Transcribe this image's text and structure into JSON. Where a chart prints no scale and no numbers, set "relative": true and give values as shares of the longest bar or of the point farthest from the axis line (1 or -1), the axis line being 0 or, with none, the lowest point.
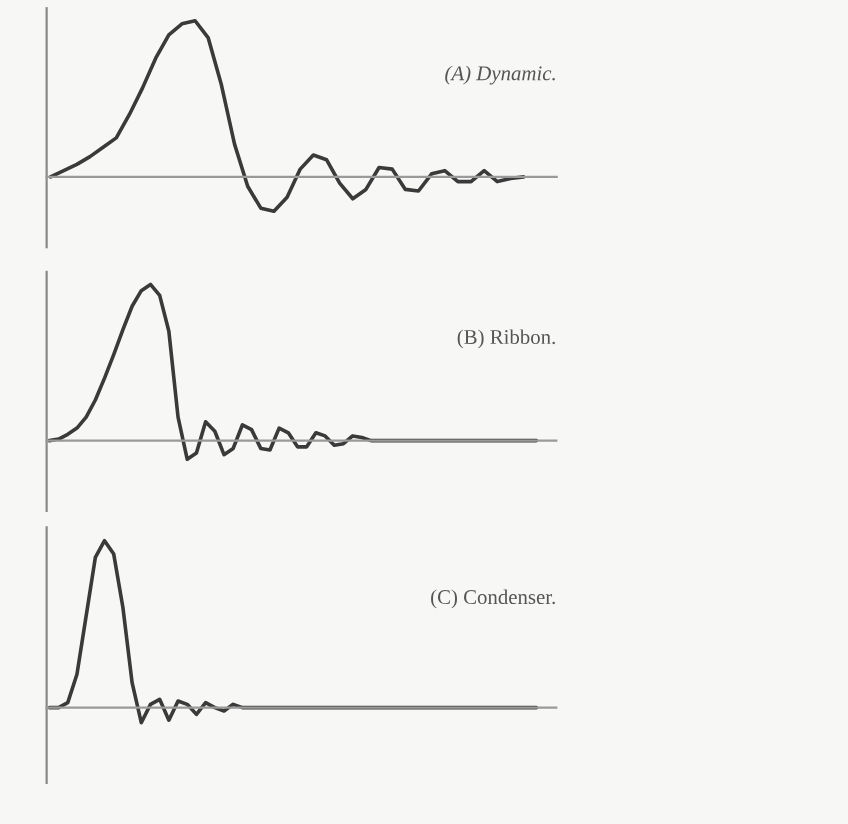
{
  "chart_data": [
    {
      "type": "line",
      "relative": true,
      "title": "(A) Dynamic.",
      "categories": [
        null,
        null,
        null,
        null,
        null,
        null,
        null,
        null,
        null,
        null,
        null,
        null,
        null,
        null,
        null,
        null,
        null,
        null,
        null,
        null,
        null,
        null,
        null,
        null,
        null,
        null,
        null,
        null,
        null,
        null,
        null,
        null,
        null,
        null,
        null,
        null,
        null,
        null
      ],
      "series": [
        {
          "color": "#3a3a3a",
          "values": [
            0,
            0.04,
            0.08,
            0.13,
            0.19,
            0.25,
            0.4,
            0.57,
            0.76,
            0.91,
            0.98,
            1.0,
            0.89,
            0.59,
            0.21,
            -0.06,
            -0.2,
            -0.22,
            -0.13,
            0.05,
            0.14,
            0.11,
            -0.04,
            -0.14,
            -0.08,
            0.06,
            0.05,
            -0.08,
            -0.09,
            0.02,
            0.04,
            -0.03,
            -0.03,
            0.04,
            -0.03,
            -0.01,
            0,
            null
          ]
        }
      ]
    },
    {
      "type": "line",
      "relative": true,
      "title": "(B) Ribbon.",
      "categories": [
        null,
        null,
        null,
        null,
        null,
        null,
        null,
        null,
        null,
        null,
        null,
        null,
        null,
        null,
        null,
        null,
        null,
        null,
        null,
        null,
        null,
        null,
        null,
        null,
        null,
        null,
        null,
        null,
        null,
        null,
        null,
        null,
        null,
        null,
        null,
        null,
        null,
        null,
        null,
        null,
        null,
        null,
        null,
        null,
        null,
        null,
        null,
        null,
        null,
        null,
        null,
        null,
        null,
        null
      ],
      "series": [
        {
          "color": "#3a3a3a",
          "values": [
            0,
            0.01,
            0.04,
            0.08,
            0.15,
            0.26,
            0.4,
            0.55,
            0.71,
            0.86,
            0.96,
            1.0,
            0.93,
            0.7,
            0.15,
            -0.12,
            -0.08,
            0.12,
            0.06,
            -0.09,
            -0.05,
            0.1,
            0.07,
            -0.05,
            -0.06,
            0.08,
            0.05,
            -0.04,
            -0.04,
            0.05,
            0.03,
            -0.03,
            -0.02,
            0.03,
            0.02,
            0,
            0,
            0,
            0,
            0,
            0,
            0,
            0,
            0,
            0,
            0,
            0,
            0,
            0,
            0,
            0,
            0,
            0,
            0
          ]
        }
      ]
    },
    {
      "type": "line",
      "relative": true,
      "title": "(C) Condenser.",
      "categories": [
        null,
        null,
        null,
        null,
        null,
        null,
        null,
        null,
        null,
        null,
        null,
        null,
        null,
        null,
        null,
        null,
        null,
        null,
        null,
        null,
        null,
        null,
        null,
        null,
        null,
        null,
        null,
        null,
        null,
        null,
        null,
        null,
        null,
        null,
        null,
        null,
        null,
        null,
        null,
        null,
        null,
        null,
        null,
        null,
        null,
        null,
        null,
        null,
        null,
        null,
        null,
        null,
        null,
        null
      ],
      "series": [
        {
          "color": "#3a3a3a",
          "values": [
            0,
            0,
            0.03,
            0.2,
            0.55,
            0.9,
            1.0,
            0.92,
            0.6,
            0.15,
            -0.09,
            0.02,
            0.05,
            -0.075,
            0.04,
            0.02,
            -0.04,
            0.03,
            0,
            -0.02,
            0.02,
            0,
            0,
            0,
            0,
            0,
            0,
            0,
            0,
            0,
            0,
            0,
            0,
            0,
            0,
            0,
            0,
            0,
            0,
            0,
            0,
            0,
            0,
            0,
            0,
            0,
            0,
            0,
            0,
            0,
            0,
            0,
            0,
            0
          ]
        }
      ]
    }
  ]
}
